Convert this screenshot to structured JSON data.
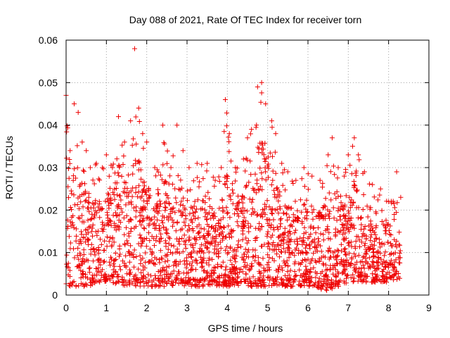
{
  "chart_data": {
    "type": "scatter",
    "title": "Day 088 of 2021, Rate Of TEC Index for receiver torn",
    "xlabel": "GPS time / hours",
    "ylabel": "ROTI / TECUs",
    "xlim": [
      0,
      9
    ],
    "ylim": [
      0,
      0.06
    ],
    "x_ticks": [
      "0",
      "1",
      "2",
      "3",
      "4",
      "5",
      "6",
      "7",
      "8",
      "9"
    ],
    "y_ticks": [
      "0",
      "0.01",
      "0.02",
      "0.03",
      "0.04",
      "0.05",
      "0.06"
    ],
    "grid": true,
    "marker": "+",
    "marker_color": "#ee0000",
    "x_data_range": [
      0,
      8.3
    ],
    "envelope_upper": [
      [
        0.0,
        0.047
      ],
      [
        0.1,
        0.034
      ],
      [
        0.2,
        0.045
      ],
      [
        0.3,
        0.043
      ],
      [
        0.4,
        0.036
      ],
      [
        0.5,
        0.034
      ],
      [
        0.6,
        0.03
      ],
      [
        0.75,
        0.031
      ],
      [
        0.9,
        0.03
      ],
      [
        1.0,
        0.033
      ],
      [
        1.15,
        0.03
      ],
      [
        1.3,
        0.042
      ],
      [
        1.45,
        0.036
      ],
      [
        1.6,
        0.041
      ],
      [
        1.7,
        0.058
      ],
      [
        1.8,
        0.044
      ],
      [
        1.9,
        0.038
      ],
      [
        2.0,
        0.036
      ],
      [
        2.2,
        0.03
      ],
      [
        2.4,
        0.04
      ],
      [
        2.6,
        0.03
      ],
      [
        2.75,
        0.04
      ],
      [
        2.9,
        0.034
      ],
      [
        3.05,
        0.03
      ],
      [
        3.25,
        0.031
      ],
      [
        3.5,
        0.031
      ],
      [
        3.7,
        0.027
      ],
      [
        3.85,
        0.03
      ],
      [
        3.95,
        0.046
      ],
      [
        4.05,
        0.038
      ],
      [
        4.2,
        0.03
      ],
      [
        4.4,
        0.032
      ],
      [
        4.5,
        0.037
      ],
      [
        4.6,
        0.039
      ],
      [
        4.75,
        0.049
      ],
      [
        4.85,
        0.05
      ],
      [
        4.95,
        0.045
      ],
      [
        5.1,
        0.041
      ],
      [
        5.2,
        0.038
      ],
      [
        5.35,
        0.031
      ],
      [
        5.5,
        0.029
      ],
      [
        5.7,
        0.027
      ],
      [
        5.9,
        0.03
      ],
      [
        6.1,
        0.028
      ],
      [
        6.3,
        0.027
      ],
      [
        6.5,
        0.033
      ],
      [
        6.6,
        0.037
      ],
      [
        6.75,
        0.03
      ],
      [
        6.9,
        0.028
      ],
      [
        7.0,
        0.033
      ],
      [
        7.15,
        0.037
      ],
      [
        7.25,
        0.033
      ],
      [
        7.4,
        0.029
      ],
      [
        7.6,
        0.026
      ],
      [
        7.8,
        0.025
      ],
      [
        8.0,
        0.022
      ],
      [
        8.2,
        0.029
      ],
      [
        8.3,
        0.023
      ]
    ],
    "envelope_lower": [
      [
        0.0,
        0.002
      ],
      [
        0.5,
        0.002
      ],
      [
        1.0,
        0.003
      ],
      [
        1.5,
        0.002
      ],
      [
        2.0,
        0.002
      ],
      [
        2.5,
        0.002
      ],
      [
        3.0,
        0.002
      ],
      [
        3.5,
        0.002
      ],
      [
        4.0,
        0.002
      ],
      [
        4.5,
        0.002
      ],
      [
        5.0,
        0.002
      ],
      [
        5.5,
        0.002
      ],
      [
        6.0,
        0.002
      ],
      [
        6.5,
        0.001
      ],
      [
        7.0,
        0.003
      ],
      [
        7.5,
        0.003
      ],
      [
        8.0,
        0.003
      ],
      [
        8.3,
        0.004
      ]
    ],
    "point_count": 2400
  }
}
